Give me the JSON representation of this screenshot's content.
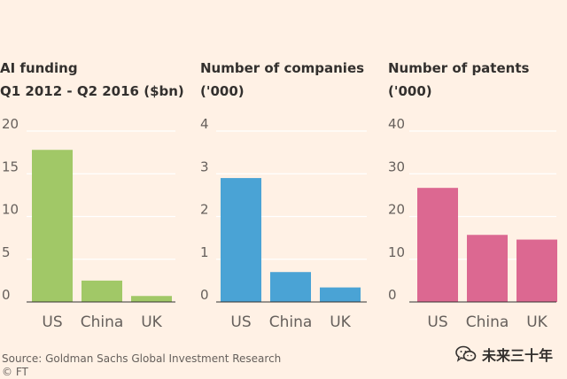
{
  "chart_data": [
    {
      "type": "bar",
      "title_lines": [
        "AI funding",
        "Q1 2012 - Q2 2016 ($bn)"
      ],
      "categories": [
        "US",
        "China",
        "UK"
      ],
      "values": [
        17.8,
        2.5,
        0.7
      ],
      "yticks": [
        "0",
        "5",
        "10",
        "15",
        "20"
      ],
      "ylim": [
        0,
        20
      ],
      "color": "#a1c867"
    },
    {
      "type": "bar",
      "title_lines": [
        "Number of companies",
        "('000)"
      ],
      "categories": [
        "US",
        "China",
        "UK"
      ],
      "values": [
        2.9,
        0.7,
        0.34
      ],
      "yticks": [
        "0",
        "1",
        "2",
        "3",
        "4"
      ],
      "ylim": [
        0,
        4
      ],
      "color": "#4aa3d5"
    },
    {
      "type": "bar",
      "title_lines": [
        "Number of patents",
        "('000)"
      ],
      "categories": [
        "US",
        "China",
        "UK"
      ],
      "values": [
        26.7,
        15.7,
        14.6
      ],
      "yticks": [
        "0",
        "10",
        "20",
        "30",
        "40"
      ],
      "ylim": [
        0,
        40
      ],
      "color": "#dc6891"
    }
  ],
  "source_line": "Source: Goldman Sachs Global Investment Research",
  "credit_line": "© FT",
  "watermark": {
    "icon": "wechat-icon",
    "text": "未来三十年"
  },
  "colors": {
    "background": "#fff1e5",
    "gridline": "#ffffff",
    "text": "#33302e"
  }
}
